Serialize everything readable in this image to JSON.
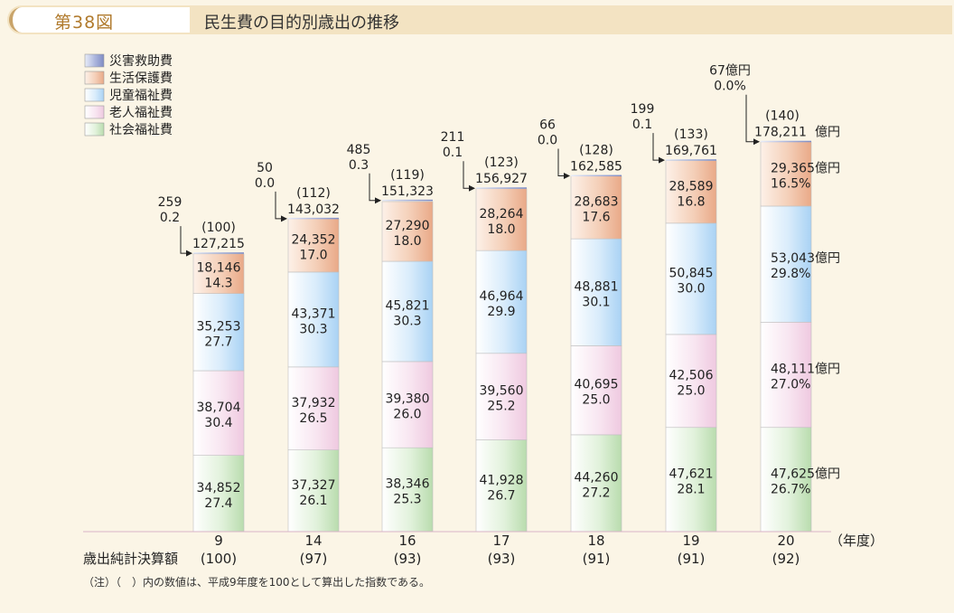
{
  "header": {
    "figure_number": "第38図",
    "title": "民生費の目的別歳出の推移"
  },
  "note": "（注）（　）内の数値は、平成9年度を100として算出した指数である。",
  "axis": {
    "year_unit": "（年度）",
    "row_label": "歳出純計決算額"
  },
  "colors": {
    "disaster": "#a9b3d6",
    "welfare": "#f2c4a8",
    "child": "#c5e0f8",
    "elderly": "#f6dcec",
    "social": "#cfe8c6"
  },
  "chart_data": {
    "type": "bar",
    "stacked": true,
    "title": "民生費の目的別歳出の推移",
    "xlabel": "（年度）",
    "categories": [
      "9",
      "14",
      "16",
      "17",
      "18",
      "19",
      "20"
    ],
    "index_labels": [
      "(100)",
      "(97)",
      "(93)",
      "(93)",
      "(91)",
      "(91)",
      "(92)"
    ],
    "top_index": [
      "(100)",
      "(112)",
      "(119)",
      "(123)",
      "(128)",
      "(133)",
      "(140)"
    ],
    "totals": [
      "127,215",
      "143,032",
      "151,323",
      "156,927",
      "162,585",
      "169,761",
      "178,211"
    ],
    "total_values": [
      127215,
      143032,
      151323,
      156927,
      162585,
      169761,
      178211
    ],
    "ylim": [
      0,
      180000
    ],
    "legend_position": "top-left",
    "series": [
      {
        "name": "社会福祉費",
        "color_key": "social",
        "values": [
          34852,
          37327,
          38346,
          41928,
          44260,
          47621,
          47625
        ],
        "labels": [
          "34,852",
          "37,327",
          "38,346",
          "41,928",
          "44,260",
          "47,621",
          "47,625"
        ],
        "pcts": [
          "27.4",
          "26.1",
          "25.3",
          "26.7",
          "27.2",
          "28.1",
          "26.7%"
        ]
      },
      {
        "name": "老人福祉費",
        "color_key": "elderly",
        "values": [
          38704,
          37932,
          39380,
          39560,
          40695,
          42506,
          48111
        ],
        "labels": [
          "38,704",
          "37,932",
          "39,380",
          "39,560",
          "40,695",
          "42,506",
          "48,111"
        ],
        "pcts": [
          "30.4",
          "26.5",
          "26.0",
          "25.2",
          "25.0",
          "25.0",
          "27.0%"
        ]
      },
      {
        "name": "児童福祉費",
        "color_key": "child",
        "values": [
          35253,
          43371,
          45821,
          46964,
          48881,
          50845,
          53043
        ],
        "labels": [
          "35,253",
          "43,371",
          "45,821",
          "46,964",
          "48,881",
          "50,845",
          "53,043"
        ],
        "pcts": [
          "27.7",
          "30.3",
          "30.3",
          "29.9",
          "30.1",
          "30.0",
          "29.8%"
        ]
      },
      {
        "name": "生活保護費",
        "color_key": "welfare",
        "values": [
          18146,
          24352,
          27290,
          28264,
          28683,
          28589,
          29365
        ],
        "labels": [
          "18,146",
          "24,352",
          "27,290",
          "28,264",
          "28,683",
          "28,589",
          "29,365"
        ],
        "pcts": [
          "14.3",
          "17.0",
          "18.0",
          "18.0",
          "17.6",
          "16.8",
          "16.5%"
        ]
      },
      {
        "name": "災害救助費",
        "color_key": "disaster",
        "values": [
          259,
          50,
          485,
          211,
          66,
          199,
          67
        ],
        "labels": [
          "259",
          "50",
          "485",
          "211",
          "66",
          "199",
          "67"
        ],
        "pcts": [
          "0.2",
          "0.0",
          "0.3",
          "0.1",
          "0.0",
          "0.1",
          "0.0%"
        ]
      }
    ],
    "unit_suffix": "億円",
    "legend_order": [
      "災害救助費",
      "生活保護費",
      "児童福祉費",
      "老人福祉費",
      "社会福祉費"
    ]
  }
}
